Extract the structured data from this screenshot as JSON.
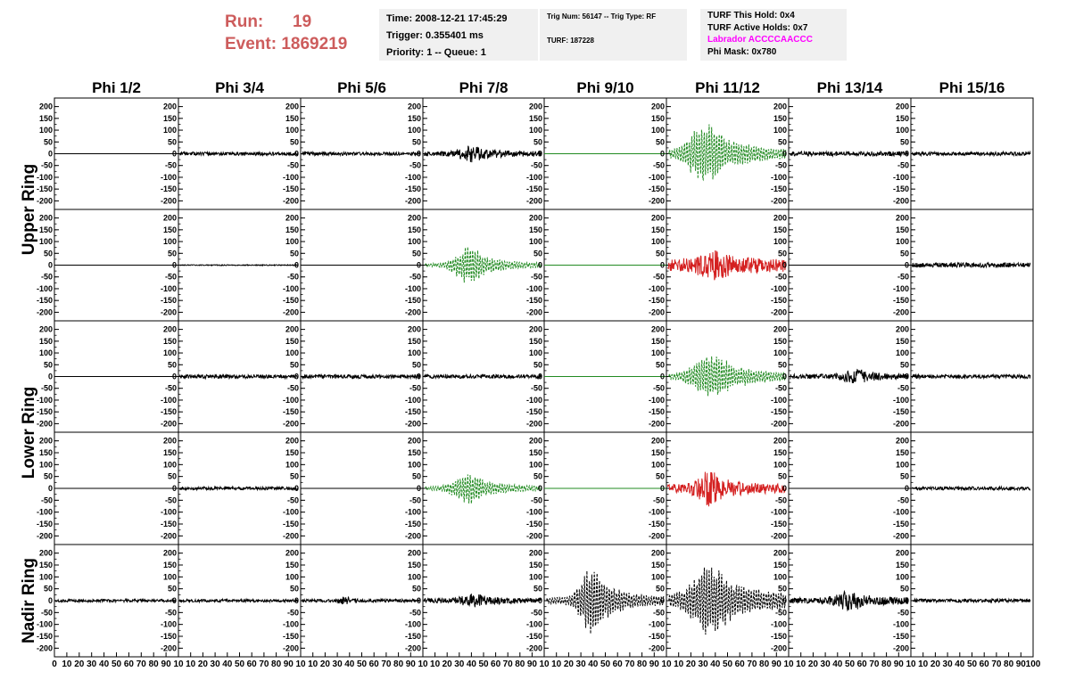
{
  "header": {
    "run_label": "Run:",
    "run_value": "19",
    "event_label": "Event:",
    "event_value": "1869219",
    "time": "Time: 2008-12-21 17:45:29",
    "trigger": "Trigger: 0.355401 ms",
    "priority": "Priority: 1 -- Queue: 1",
    "trig_num": "Trig Num: 56147 -- Trig Type: RF",
    "turf": "TURF: 187228",
    "turf_this_hold": "TURF This Hold: 0x4",
    "turf_active_holds": "TURF Active Holds: 0x7",
    "labrador": "Labrador ACCCCAACCC",
    "phi_mask": "Phi Mask: 0x780"
  },
  "colors": {
    "header_red": "#cd5c5c",
    "magenta": "#ff00ff",
    "trace_black": "#000000",
    "trace_green": "#228b22",
    "trace_red": "#d42020"
  },
  "chart_data": {
    "type": "line",
    "columns": [
      "Phi 1/2",
      "Phi 3/4",
      "Phi 5/6",
      "Phi 7/8",
      "Phi 9/10",
      "Phi 11/12",
      "Phi 13/14",
      "Phi 15/16"
    ],
    "rows": [
      "Upper Ring",
      "Upper Ring",
      "Lower Ring",
      "Lower Ring",
      "Nadir Ring"
    ],
    "row_labels": [
      {
        "text": "Upper Ring",
        "rows": [
          0,
          1
        ]
      },
      {
        "text": "Lower Ring",
        "rows": [
          2,
          3
        ]
      },
      {
        "text": "Nadir Ring",
        "rows": [
          4,
          4
        ]
      }
    ],
    "xlim": [
      0,
      100
    ],
    "ylim": [
      -225,
      225
    ],
    "y_ticks": [
      -200,
      -150,
      -100,
      -50,
      0,
      50,
      100,
      150,
      200
    ],
    "x_ticks": [
      0,
      10,
      20,
      30,
      40,
      50,
      60,
      70,
      80,
      90,
      100
    ],
    "x_tick_labels_first": [
      "0",
      "10",
      "20",
      "30",
      "40",
      "50",
      "60",
      "70",
      "80",
      "90",
      "10"
    ],
    "x_tick_labels_middle": [
      "10",
      "20",
      "30",
      "40",
      "50",
      "60",
      "70",
      "80",
      "90",
      "10"
    ],
    "x_tick_labels_last": [
      "10",
      "20",
      "30",
      "40",
      "50",
      "60",
      "70",
      "80",
      "90",
      "100"
    ],
    "grid": false,
    "panels": [
      [
        {
          "type": "flat",
          "color": "#000000"
        },
        {
          "type": "noise",
          "amp": 7,
          "seed": 11,
          "color": "#000000"
        },
        {
          "type": "noise",
          "amp": 7,
          "seed": 12,
          "color": "#000000"
        },
        {
          "type": "noise",
          "amp": 10,
          "seed": 13,
          "color": "#000000",
          "burst": {
            "center": 40,
            "width": 8,
            "amp": 28
          }
        },
        {
          "type": "flat",
          "color": "#228b22"
        },
        {
          "type": "burst",
          "amp": 12,
          "seed": 15,
          "color": "#228b22",
          "dash": true,
          "burst": {
            "center": 33,
            "width": 13,
            "amp": 120
          }
        },
        {
          "type": "noise",
          "amp": 10,
          "seed": 16,
          "color": "#000000"
        },
        {
          "type": "noise",
          "amp": 8,
          "seed": 17,
          "color": "#000000"
        }
      ],
      [
        {
          "type": "flat",
          "color": "#000000"
        },
        {
          "type": "noise",
          "amp": 2,
          "seed": 21,
          "color": "#000000"
        },
        {
          "type": "flat",
          "color": "#000000"
        },
        {
          "type": "burst",
          "amp": 8,
          "seed": 23,
          "color": "#228b22",
          "dash": true,
          "burst": {
            "center": 38,
            "width": 9,
            "amp": 85
          }
        },
        {
          "type": "flat",
          "color": "#228b22"
        },
        {
          "type": "noise",
          "amp": 24,
          "seed": 25,
          "color": "#d42020",
          "burst": {
            "center": 38,
            "width": 12,
            "amp": 40
          }
        },
        {
          "type": "flat",
          "color": "#000000"
        },
        {
          "type": "noise",
          "amp": 10,
          "seed": 27,
          "color": "#000000"
        }
      ],
      [
        {
          "type": "flat",
          "color": "#000000"
        },
        {
          "type": "noise",
          "amp": 8,
          "seed": 31,
          "color": "#000000"
        },
        {
          "type": "noise",
          "amp": 8,
          "seed": 32,
          "color": "#000000"
        },
        {
          "type": "noise",
          "amp": 8,
          "seed": 33,
          "color": "#000000"
        },
        {
          "type": "flat",
          "color": "#228b22"
        },
        {
          "type": "burst",
          "amp": 12,
          "seed": 35,
          "color": "#228b22",
          "dash": true,
          "burst": {
            "center": 37,
            "width": 12,
            "amp": 95
          }
        },
        {
          "type": "noise",
          "amp": 10,
          "seed": 36,
          "color": "#000000",
          "burst": {
            "center": 55,
            "width": 8,
            "amp": 22
          }
        },
        {
          "type": "noise",
          "amp": 8,
          "seed": 37,
          "color": "#000000"
        }
      ],
      [
        {
          "type": "flat",
          "color": "#000000"
        },
        {
          "type": "noise",
          "amp": 6,
          "seed": 41,
          "color": "#000000"
        },
        {
          "type": "flat",
          "color": "#000000"
        },
        {
          "type": "burst",
          "amp": 8,
          "seed": 43,
          "color": "#228b22",
          "dash": true,
          "burst": {
            "center": 38,
            "width": 10,
            "amp": 60
          }
        },
        {
          "type": "flat",
          "color": "#228b22"
        },
        {
          "type": "noise",
          "amp": 18,
          "seed": 45,
          "color": "#d42020",
          "burst": {
            "center": 36,
            "width": 8,
            "amp": 60
          }
        },
        {
          "type": "flat",
          "color": "#000000"
        },
        {
          "type": "noise",
          "amp": 7,
          "seed": 47,
          "color": "#000000"
        }
      ],
      [
        {
          "type": "noise",
          "amp": 6,
          "seed": 51,
          "color": "#000000"
        },
        {
          "type": "noise",
          "amp": 6,
          "seed": 52,
          "color": "#000000"
        },
        {
          "type": "noise",
          "amp": 6,
          "seed": 53,
          "color": "#000000",
          "burst": {
            "center": 36,
            "width": 3,
            "amp": 15
          }
        },
        {
          "type": "noise",
          "amp": 10,
          "seed": 54,
          "color": "#000000",
          "burst": {
            "center": 42,
            "width": 8,
            "amp": 20
          }
        },
        {
          "type": "burst",
          "amp": 15,
          "seed": 55,
          "color": "#000000",
          "dash": true,
          "burst": {
            "center": 40,
            "width": 9,
            "amp": 130
          }
        },
        {
          "type": "burst",
          "amp": 25,
          "seed": 56,
          "color": "#000000",
          "dash": true,
          "burst": {
            "center": 36,
            "width": 12,
            "amp": 140
          }
        },
        {
          "type": "noise",
          "amp": 12,
          "seed": 57,
          "color": "#000000",
          "burst": {
            "center": 50,
            "width": 10,
            "amp": 30
          }
        },
        {
          "type": "noise",
          "amp": 7,
          "seed": 58,
          "color": "#000000"
        }
      ]
    ]
  }
}
